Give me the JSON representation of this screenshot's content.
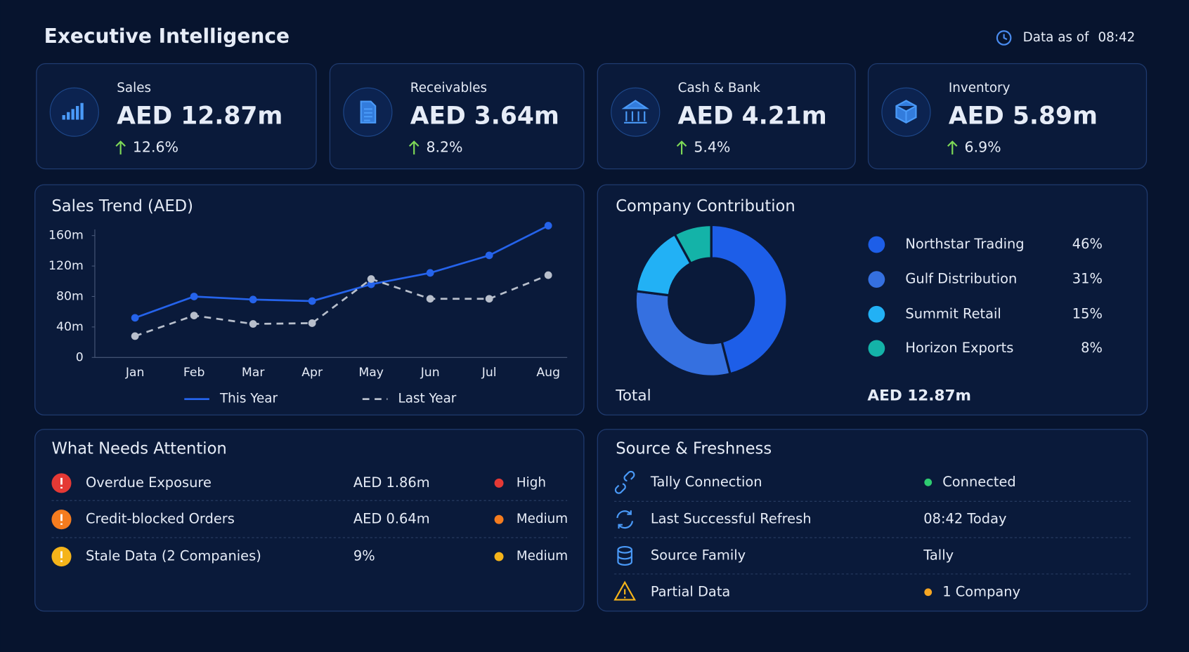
{
  "header": {
    "title": "Executive Intelligence",
    "data_as_of_label": "Data as of",
    "data_as_of_time": "08:42"
  },
  "kpis": [
    {
      "label": "Sales",
      "value": "AED 12.87m",
      "change": "12.6%"
    },
    {
      "label": "Receivables",
      "value": "AED 3.64m",
      "change": "8.2%"
    },
    {
      "label": "Cash & Bank",
      "value": "AED 4.21m",
      "change": "5.4%"
    },
    {
      "label": "Inventory",
      "value": "AED 5.89m",
      "change": "6.9%"
    }
  ],
  "chart_data": [
    {
      "type": "line",
      "title": "Sales Trend (AED)",
      "categories": [
        "Jan",
        "Feb",
        "Mar",
        "Apr",
        "May",
        "Jun",
        "Jul",
        "Aug"
      ],
      "series": [
        {
          "name": "This Year",
          "color": "#2563eb",
          "dashed": false,
          "values": [
            52,
            80,
            76,
            74,
            96,
            111,
            134,
            173
          ]
        },
        {
          "name": "Last Year",
          "color": "#b8bfcc",
          "dashed": true,
          "values": [
            28,
            55,
            44,
            45,
            103,
            77,
            77,
            108
          ]
        }
      ],
      "ylim": [
        0,
        175
      ],
      "yticks": [
        0,
        {
          "value": 40,
          "label": "40m"
        },
        {
          "value": 80,
          "label": "80m"
        },
        {
          "value": 120,
          "label": "120m"
        },
        {
          "value": 160,
          "label": "160m"
        }
      ]
    },
    {
      "type": "donut",
      "title": "Company Contribution",
      "categories": [
        "Northstar Trading",
        "Gulf Distribution",
        "Summit Retail",
        "Horizon Exports"
      ],
      "values": [
        46,
        31,
        15,
        8
      ],
      "value_labels": [
        "46%",
        "31%",
        "15%",
        "8%"
      ],
      "colors": [
        "#1d5ee8",
        "#3570e0",
        "#22b1f5",
        "#14b3a8"
      ],
      "total_label": "Total",
      "total_value": "AED 12.87m"
    }
  ],
  "attention": {
    "title": "What Needs Attention",
    "rows": [
      {
        "label": "Overdue Exposure",
        "amount": "AED 1.86m",
        "severity": "High",
        "color": "#e53935"
      },
      {
        "label": "Credit-blocked Orders",
        "amount": "AED 0.64m",
        "severity": "Medium",
        "color": "#f57c1f"
      },
      {
        "label": "Stale Data (2 Companies)",
        "amount": "9%",
        "severity": "Medium",
        "color": "#f5b41a"
      }
    ]
  },
  "sources": {
    "title": "Source & Freshness",
    "rows": [
      {
        "label": "Tally Connection",
        "value": "Connected"
      },
      {
        "label": "Last Successful Refresh",
        "value": "08:42 Today"
      },
      {
        "label": "Source Family",
        "value": "Tally"
      },
      {
        "label": "Partial Data",
        "value": "1 Company"
      }
    ]
  }
}
